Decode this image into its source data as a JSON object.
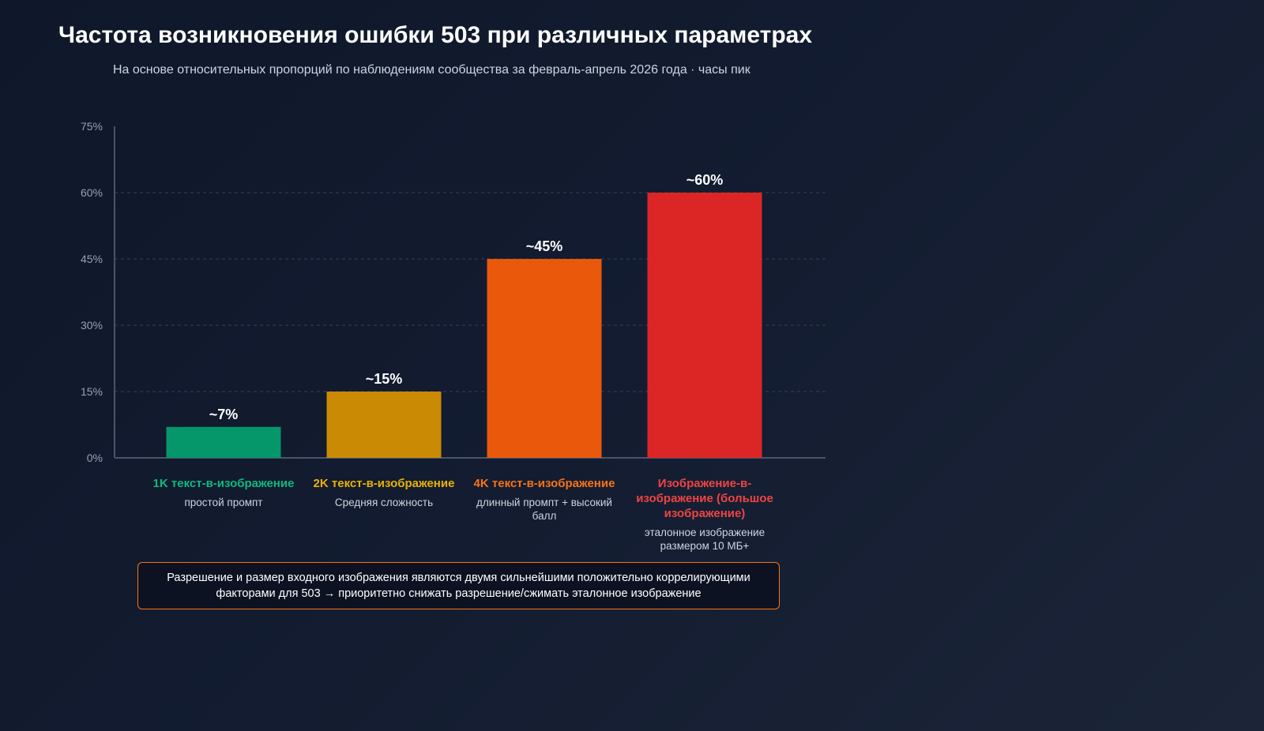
{
  "chart_data": {
    "type": "bar",
    "title": "Частота возникновения ошибки 503 при различных параметрах",
    "subtitle": "На основе относительных пропорций по наблюдениям сообщества за февраль-апрель 2026 года · часы пик",
    "categories": [
      "1K текст-в-изображение",
      "2K текст-в-изображение",
      "4K текст-в-изображение",
      "Изображение-в-изображение (большое изображение)"
    ],
    "sublabels": [
      "простой промпт",
      "Средняя сложность",
      "длинный промпт + высокий балл",
      "эталонное изображение размером 10 МБ+"
    ],
    "values": [
      7,
      15,
      45,
      60
    ],
    "data_labels": [
      "~7%",
      "~15%",
      "~45%",
      "~60%"
    ],
    "colors": [
      "#059669",
      "#ca8a04",
      "#ea580c",
      "#dc2626"
    ],
    "label_colors": [
      "#10b981",
      "#eab308",
      "#f97316",
      "#ef4444"
    ],
    "ylim": [
      0,
      75
    ],
    "yticks": [
      0,
      15,
      30,
      45,
      60,
      75
    ],
    "ytick_labels": [
      "0%",
      "15%",
      "30%",
      "45%",
      "60%",
      "75%"
    ],
    "grid": true,
    "xlabel": "",
    "ylabel": ""
  },
  "callout": "Разрешение и размер входного изображения являются двумя сильнейшими положительно коррелирующими факторами для 503 → приоритетно снижать разрешение/сжимать эталонное изображение"
}
